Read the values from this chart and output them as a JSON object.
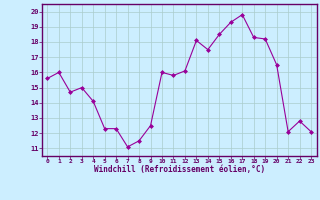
{
  "hours": [
    0,
    1,
    2,
    3,
    4,
    5,
    6,
    7,
    8,
    9,
    10,
    11,
    12,
    13,
    14,
    15,
    16,
    17,
    18,
    19,
    20,
    21,
    22,
    23
  ],
  "values": [
    15.6,
    16.0,
    14.7,
    15.0,
    14.1,
    12.3,
    12.3,
    11.1,
    11.5,
    12.5,
    16.0,
    15.8,
    16.1,
    18.1,
    17.5,
    18.5,
    19.3,
    19.8,
    18.3,
    18.2,
    16.5,
    12.1,
    12.8,
    12.1
  ],
  "ylabel_ticks": [
    11,
    12,
    13,
    14,
    15,
    16,
    17,
    18,
    19,
    20
  ],
  "xlabel_ticks": [
    0,
    1,
    2,
    3,
    4,
    5,
    6,
    7,
    8,
    9,
    10,
    11,
    12,
    13,
    14,
    15,
    16,
    17,
    18,
    19,
    20,
    21,
    22,
    23
  ],
  "ylim": [
    10.5,
    20.5
  ],
  "xlim": [
    -0.5,
    23.5
  ],
  "line_color": "#990099",
  "marker_color": "#990099",
  "bg_color": "#cceeff",
  "grid_color": "#aacccc",
  "xlabel": "Windchill (Refroidissement éolien,°C)",
  "figsize": [
    3.2,
    2.0
  ],
  "dpi": 100
}
